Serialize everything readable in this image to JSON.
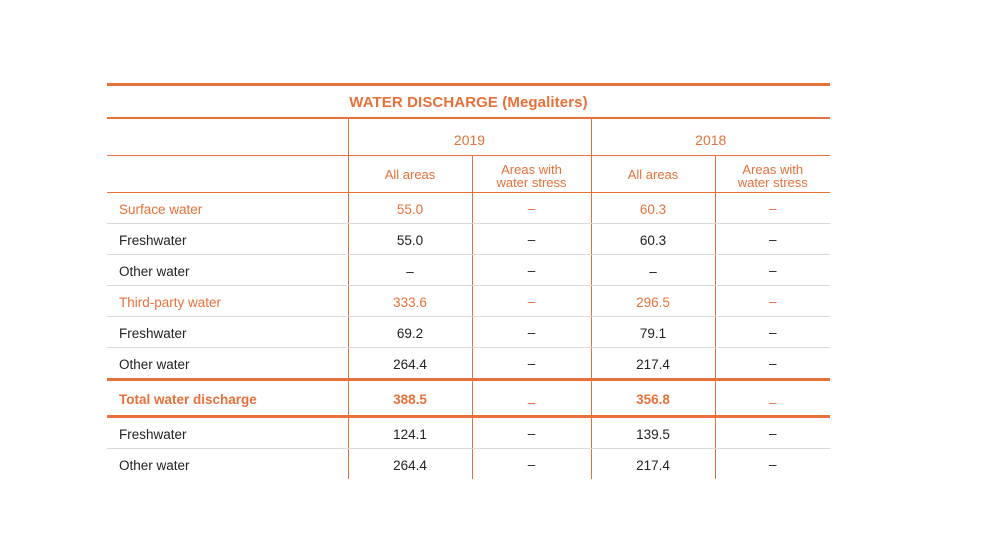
{
  "table": {
    "title": "WATER DISCHARGE (Megaliters)",
    "years": [
      "2019",
      "2018"
    ],
    "subheaders": [
      "All areas",
      "Areas with water stress",
      "All areas",
      "Areas with water stress"
    ],
    "rows": [
      {
        "label": "Surface water",
        "cells": [
          "55.0",
          "–",
          "60.3",
          "–"
        ]
      },
      {
        "label": "Freshwater",
        "cells": [
          "55.0",
          "–",
          "60.3",
          "–"
        ]
      },
      {
        "label": "Other water",
        "cells": [
          "–",
          "–",
          "–",
          "–"
        ]
      },
      {
        "label": "Third-party water",
        "cells": [
          "333.6",
          "–",
          "296.5",
          "–"
        ]
      },
      {
        "label": "Freshwater",
        "cells": [
          "69.2",
          "–",
          "79.1",
          "–"
        ]
      },
      {
        "label": "Other water",
        "cells": [
          "264.4",
          "–",
          "217.4",
          "–"
        ]
      },
      {
        "label": "Total water discharge",
        "cells": [
          "388.5",
          "–",
          "356.8",
          "–"
        ]
      },
      {
        "label": "Freshwater",
        "cells": [
          "124.1",
          "–",
          "139.5",
          "–"
        ]
      },
      {
        "label": "Other water",
        "cells": [
          "264.4",
          "–",
          "217.4",
          "–"
        ]
      }
    ]
  },
  "colors": {
    "accent": "#e8703a",
    "text": "#222222",
    "grid": "#d9d9d9"
  }
}
